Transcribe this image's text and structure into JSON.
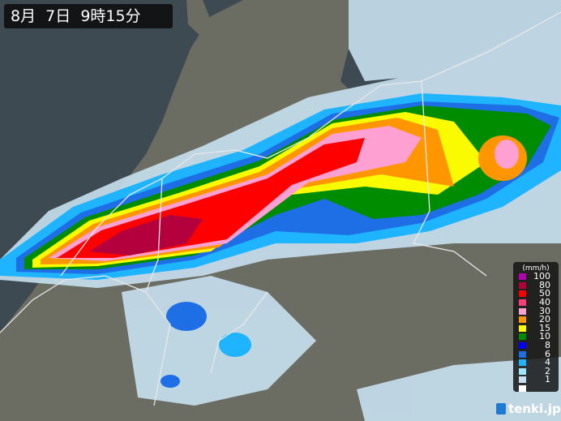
{
  "header": {
    "datetime": "8月  7日  9時15分"
  },
  "legend": {
    "unit": "(mm/h)",
    "items": [
      {
        "label": "100",
        "color": "#b400b4"
      },
      {
        "label": "80",
        "color": "#b4003c"
      },
      {
        "label": "50",
        "color": "#ff0000"
      },
      {
        "label": "40",
        "color": "#ff3c78"
      },
      {
        "label": "30",
        "color": "#ffa0d2"
      },
      {
        "label": "20",
        "color": "#ff9600"
      },
      {
        "label": "15",
        "color": "#fafa00"
      },
      {
        "label": "10",
        "color": "#008c00"
      },
      {
        "label": "8",
        "color": "#0000ff"
      },
      {
        "label": "6",
        "color": "#1e6ee6"
      },
      {
        "label": "4",
        "color": "#1eb4ff"
      },
      {
        "label": "2",
        "color": "#a0e6ff"
      },
      {
        "label": "1",
        "color": "#c8e0f0"
      },
      {
        "label": "",
        "color": "#ffffff"
      }
    ]
  },
  "brand": {
    "name": "tenki.jp"
  },
  "colors": {
    "sea": "#3d4a52",
    "land": "#6b6d63"
  }
}
